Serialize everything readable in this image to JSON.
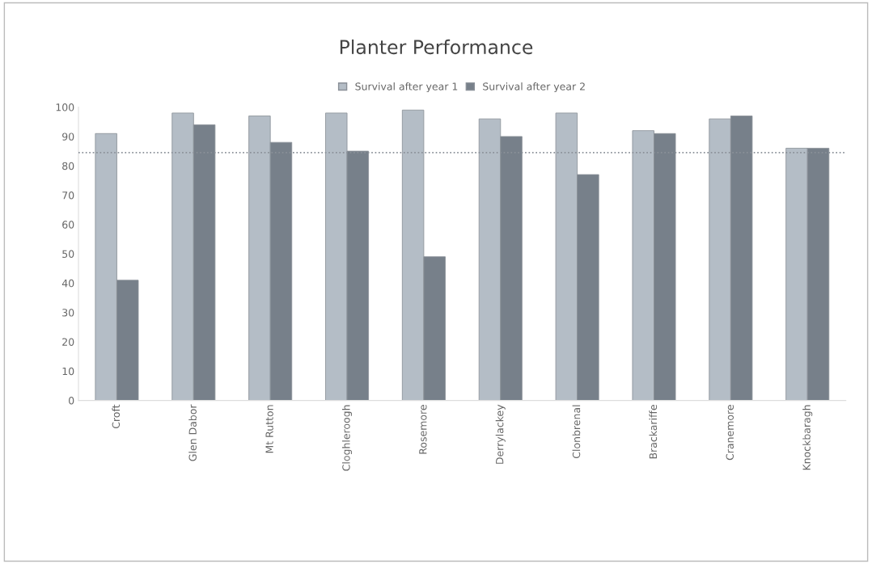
{
  "chart_data": {
    "type": "bar",
    "title": "Planter Performance",
    "categories": [
      "Croft",
      "Glen Dabor",
      "Mt Rutton",
      "Cloghleroogh",
      "Rosemore",
      "Derrylackey",
      "Clonbrenal",
      "Brackariffe",
      "Cranemore",
      "Knockbaragh"
    ],
    "series": [
      {
        "name": "Survival after year 1",
        "color": "#b4bdc6",
        "values": [
          91,
          98,
          97,
          98,
          99,
          96,
          98,
          92,
          96,
          86
        ]
      },
      {
        "name": "Survival after year 2",
        "color": "#77808a",
        "values": [
          41,
          94,
          88,
          85,
          49,
          90,
          77,
          91,
          97,
          86
        ]
      }
    ],
    "ylim": [
      0,
      100
    ],
    "yticks": [
      0,
      10,
      20,
      30,
      40,
      50,
      60,
      70,
      80,
      90,
      100
    ],
    "ref_lines": [
      {
        "axis": "y",
        "value": 84.5,
        "color": "#8a9098",
        "line_style": "dotted"
      }
    ],
    "legend": "top",
    "grid": false
  }
}
